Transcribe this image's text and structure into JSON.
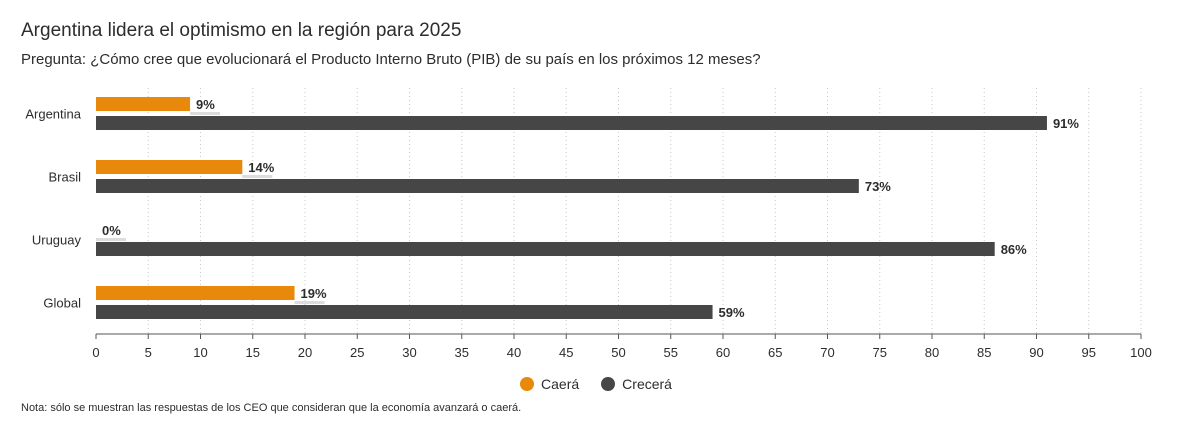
{
  "chart_data": {
    "type": "bar",
    "orientation": "horizontal",
    "title": "Argentina lidera el optimismo en la región para 2025",
    "subtitle": "Pregunta: ¿Cómo cree que evolucionará el Producto Interno Bruto (PIB) de su país en los próximos 12 meses?",
    "categories": [
      "Argentina",
      "Brasil",
      "Uruguay",
      "Global"
    ],
    "series": [
      {
        "name": "Caerá",
        "color": "#e8890b",
        "values": [
          9,
          14,
          0,
          19
        ],
        "labels": [
          "9%",
          "14%",
          "0%",
          "19%"
        ]
      },
      {
        "name": "Crecerá",
        "color": "#464646",
        "values": [
          91,
          73,
          86,
          59
        ],
        "labels": [
          "91%",
          "73%",
          "86%",
          "59%"
        ]
      }
    ],
    "xlim": [
      0,
      100
    ],
    "xticks": [
      "0",
      "5",
      "10",
      "15",
      "20",
      "25",
      "30",
      "35",
      "40",
      "45",
      "50",
      "55",
      "60",
      "65",
      "70",
      "75",
      "80",
      "85",
      "90",
      "95",
      "100"
    ],
    "grid": true,
    "legend_position": "bottom-center",
    "note": "Nota: sólo se muestran las respuestas de los CEO que consideran que la economía avanzará o caerá."
  }
}
